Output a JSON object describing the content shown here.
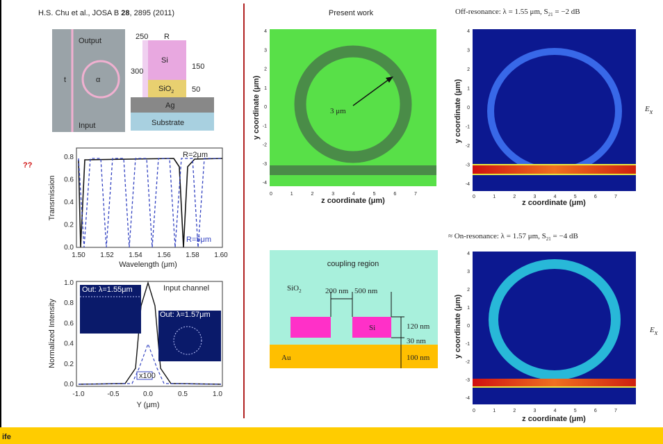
{
  "citation": {
    "authors": "H.S. Chu et al., JOSA B ",
    "volume": "28",
    "rest": ", 2895 (2011)"
  },
  "question": "??",
  "schematic": {
    "output": "Output",
    "input": "Input",
    "t": "t",
    "alpha": "α",
    "dim_250": "250",
    "r": "R",
    "si": "Si",
    "dim_300": "300",
    "dim_150": "150",
    "sio2": "SiO",
    "sio2_sub": "2",
    "dim_50": "50",
    "ag": "Ag",
    "substrate": "Substrate"
  },
  "transmission_plot": {
    "y_label": "Transmission",
    "x_label": "Wavelength (μm)",
    "y_ticks": [
      "0.0",
      "0.2",
      "0.4",
      "0.6",
      "0.8"
    ],
    "x_ticks": [
      "1.50",
      "1.52",
      "1.54",
      "1.56",
      "1.58",
      "1.60"
    ],
    "label_r2": "R=2μm",
    "label_r5": "R=5μm"
  },
  "intensity_plot": {
    "y_label": "Normalized Intensity",
    "x_label": "Y (μm)",
    "y_ticks": [
      "0.0",
      "0.2",
      "0.4",
      "0.6",
      "0.8",
      "1.0"
    ],
    "x_ticks": [
      "-1.0",
      "-0.5",
      "0.0",
      "0.5",
      "1.0"
    ],
    "inset_155": "Out: λ=1.55μm",
    "inset_157": "Out: λ=1.57μm",
    "input_channel": "Input channel",
    "scale": "x100"
  },
  "present_work": {
    "title": "Present work",
    "radius": "3 μm",
    "y_label": "y coordinate (μm)",
    "x_label": "z coordinate (μm)",
    "y_ticks": [
      "4",
      "3",
      "2",
      "1",
      "0",
      "-1",
      "-2",
      "-3",
      "-4"
    ],
    "x_ticks": [
      "0",
      "1",
      "2",
      "3",
      "4",
      "5",
      "6",
      "7"
    ]
  },
  "coupling": {
    "title": "coupling region",
    "sio2": "SiO",
    "sio2_sub": "2",
    "gap": "200 nm",
    "width": "500 nm",
    "si": "Si",
    "height": "120 nm",
    "spacer": "30 nm",
    "au": "Au",
    "au_thickness": "100 nm"
  },
  "off_resonance": {
    "caption": "Off-resonance: λ = 1.55 μm, S",
    "caption_sub": "21",
    "caption_end": " = −2 dB",
    "field": "E",
    "field_sub": "x",
    "y_label": "y coordinate (μm)",
    "x_label": "z coordinate (μm)",
    "y_ticks": [
      "4",
      "3",
      "2",
      "1",
      "0",
      "-1",
      "-2",
      "-3",
      "-4"
    ],
    "x_ticks": [
      "0",
      "1",
      "2",
      "3",
      "4",
      "5",
      "6",
      "7"
    ]
  },
  "on_resonance": {
    "caption": "≈ On-resonance: λ = 1.57 μm, S",
    "caption_sub": "21",
    "caption_end": " = −4 dB",
    "field": "E",
    "field_sub": "x",
    "y_label": "y coordinate (μm)",
    "x_label": "z coordinate (μm)",
    "y_ticks": [
      "4",
      "3",
      "2",
      "1",
      "0",
      "-1",
      "-2",
      "-3",
      "-4"
    ],
    "x_ticks": [
      "0",
      "1",
      "2",
      "3",
      "4",
      "5",
      "6",
      "7"
    ]
  },
  "footer": {
    "logo": "ife"
  }
}
